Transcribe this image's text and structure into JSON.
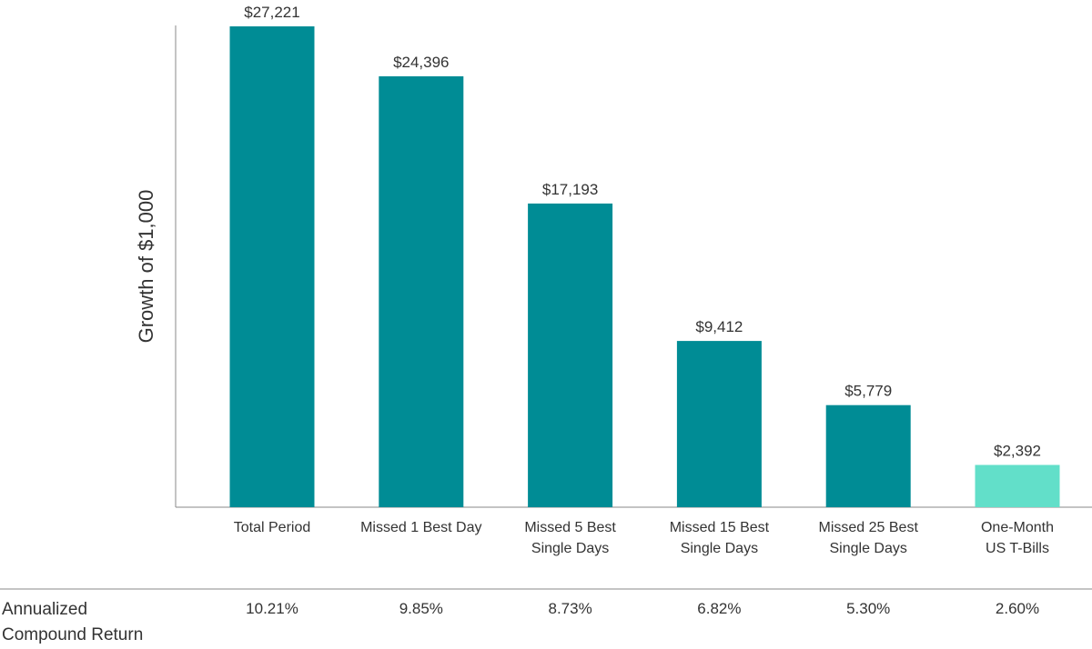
{
  "chart_data": {
    "type": "bar",
    "ylabel": "Growth of $1,000",
    "categories": [
      [
        "Total Period"
      ],
      [
        "Missed 1 Best Day"
      ],
      [
        "Missed 5 Best",
        "Single Days"
      ],
      [
        "Missed 15 Best",
        "Single Days"
      ],
      [
        "Missed 25 Best",
        "Single Days"
      ],
      [
        "One-Month",
        "US T-Bills"
      ]
    ],
    "values": [
      27221,
      24396,
      17193,
      9412,
      5779,
      2392
    ],
    "value_labels": [
      "$27,221",
      "$24,396",
      "$17,193",
      "$9,412",
      "$5,779",
      "$2,392"
    ],
    "bar_colors": [
      "#008c95",
      "#008c95",
      "#008c95",
      "#008c95",
      "#008c95",
      "#62dfc9"
    ],
    "ylim": [
      0,
      28000
    ],
    "grid": false,
    "annualized_row": {
      "title": [
        "Annualized",
        "Compound Return"
      ],
      "values": [
        "10.21%",
        "9.85%",
        "8.73%",
        "6.82%",
        "5.30%",
        "2.60%"
      ]
    }
  }
}
